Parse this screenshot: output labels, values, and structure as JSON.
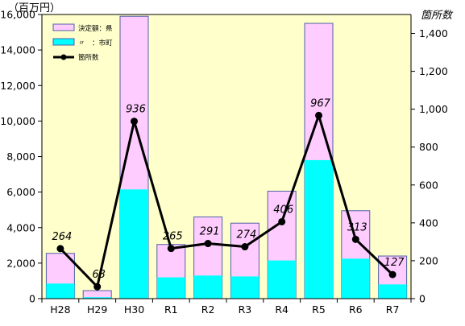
{
  "chart_data": {
    "type": "bar",
    "categories": [
      "H28",
      "H29",
      "H30",
      "R1",
      "R2",
      "R3",
      "R4",
      "R5",
      "R6",
      "R7"
    ],
    "series": [
      {
        "name": "決定額：県",
        "kind": "stacked-bar-top",
        "color": "#ffccff",
        "total_values": [
          2550,
          450,
          15900,
          3050,
          4600,
          4250,
          6050,
          15500,
          4950,
          2400
        ]
      },
      {
        "name": "〃　：市町",
        "kind": "stacked-bar-bottom",
        "color": "#00ffff",
        "values": [
          850,
          80,
          6150,
          1200,
          1300,
          1250,
          2150,
          7800,
          2250,
          800
        ]
      },
      {
        "name": "箇所数",
        "kind": "line",
        "axis": "right",
        "color": "#000000",
        "values": [
          264,
          63,
          936,
          265,
          291,
          274,
          406,
          967,
          313,
          127
        ],
        "data_labels": [
          "264",
          "63",
          "936",
          "265",
          "291",
          "274",
          "406",
          "967",
          "313",
          "127"
        ]
      }
    ],
    "left_axis": {
      "unit_label": "（百万円）",
      "ylim": [
        0,
        16000
      ],
      "ticks": [
        0,
        2000,
        4000,
        6000,
        8000,
        10000,
        12000,
        14000,
        16000
      ],
      "tick_labels": [
        "0",
        "2,000",
        "4,000",
        "6,000",
        "8,000",
        "10,000",
        "12,000",
        "14,000",
        "16,000"
      ]
    },
    "right_axis": {
      "unit_label": "箇所数",
      "ylim": [
        0,
        1500
      ],
      "ticks": [
        0,
        200,
        400,
        600,
        800,
        1000,
        1200,
        1400
      ],
      "tick_labels": [
        "0",
        "200",
        "400",
        "600",
        "800",
        "1,000",
        "1,200",
        "1,400"
      ]
    },
    "grid": false,
    "legend_position": "top-left",
    "plot_background": "#ffffcc",
    "bar_border_color": "#4f5fa7"
  }
}
